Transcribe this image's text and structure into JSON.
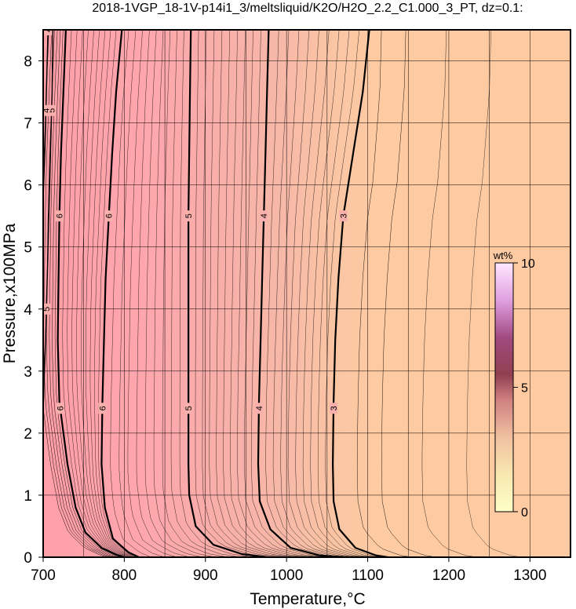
{
  "chart_data": {
    "type": "contour",
    "title": "2018-1VGP_18-1V-p14i1_3/meltsliquid/K2O/H2O_2.2_C1.000_3_PT, dz=0.1:",
    "xlabel": "Temperature,°C",
    "ylabel": "Pressure,x100MPa",
    "xlim": [
      700,
      1350
    ],
    "ylim": [
      0,
      8.5
    ],
    "xticks": [
      "700",
      "800",
      "900",
      "1000",
      "1100",
      "1200",
      "1300"
    ],
    "yticks": [
      "0",
      "1",
      "2",
      "3",
      "4",
      "5",
      "6",
      "7",
      "8"
    ],
    "grid": true,
    "colorbar": {
      "label": "wt%",
      "min": 0,
      "max": 10,
      "ticks": [
        "0",
        "5",
        "10"
      ],
      "colors": [
        "#ffffc8",
        "#ffd0a0",
        "#f0a0a0",
        "#c06070",
        "#a05090",
        "#ffe8ff"
      ]
    },
    "colors": {
      "low_region": "#fcc8a0",
      "mid_region": "#f5a8a8",
      "high_region": "#ffa8b0"
    },
    "contour_lines": [
      {
        "level": 6,
        "labels": [
          "6",
          "6"
        ],
        "points": [
          [
            797,
            8.5
          ],
          [
            790,
            7.5
          ],
          [
            785,
            6.5
          ],
          [
            781,
            5.5
          ],
          [
            777,
            4.5
          ],
          [
            775,
            3.5
          ],
          [
            773,
            2.5
          ],
          [
            772,
            1.5
          ],
          [
            776,
            0.8
          ],
          [
            786,
            0.3
          ],
          [
            805,
            0.08
          ],
          [
            818,
            0.0
          ]
        ]
      },
      {
        "level": 6,
        "labels": [
          "6",
          "6"
        ],
        "points": [
          [
            728,
            8.5
          ],
          [
            725,
            7.5
          ],
          [
            722,
            6.5
          ],
          [
            720,
            5.5
          ],
          [
            719,
            4.5
          ],
          [
            718,
            3.5
          ],
          [
            720,
            2.5
          ],
          [
            730,
            1.5
          ],
          [
            740,
            0.8
          ],
          [
            752,
            0.4
          ],
          [
            772,
            0.15
          ],
          [
            790,
            0.04
          ],
          [
            800,
            0.0
          ]
        ]
      },
      {
        "level": 5,
        "labels": [
          "5",
          "5"
        ],
        "points": [
          [
            882,
            8.5
          ],
          [
            881,
            7.5
          ],
          [
            880,
            6.5
          ],
          [
            879,
            5.5
          ],
          [
            879,
            4.5
          ],
          [
            879,
            3.5
          ],
          [
            879,
            2.5
          ],
          [
            879,
            1.5
          ],
          [
            880,
            1.0
          ],
          [
            888,
            0.5
          ],
          [
            910,
            0.2
          ],
          [
            945,
            0.05
          ],
          [
            975,
            0.0
          ]
        ]
      },
      {
        "level": 4,
        "labels": [
          "4",
          "4"
        ],
        "points": [
          [
            978,
            8.5
          ],
          [
            976,
            7.5
          ],
          [
            974,
            6.5
          ],
          [
            972,
            5.5
          ],
          [
            970,
            4.5
          ],
          [
            968,
            3.5
          ],
          [
            966,
            2.5
          ],
          [
            965,
            1.5
          ],
          [
            967,
            0.9
          ],
          [
            980,
            0.45
          ],
          [
            1005,
            0.15
          ],
          [
            1040,
            0.03
          ],
          [
            1070,
            0.0
          ]
        ]
      },
      {
        "level": 3,
        "labels": [
          "3",
          "3"
        ],
        "points": [
          [
            1102,
            8.5
          ],
          [
            1094,
            7.5
          ],
          [
            1082,
            6.5
          ],
          [
            1070,
            5.5
          ],
          [
            1064,
            4.5
          ],
          [
            1060,
            3.5
          ],
          [
            1058,
            2.5
          ],
          [
            1057,
            1.5
          ],
          [
            1058,
            0.9
          ],
          [
            1065,
            0.45
          ],
          [
            1085,
            0.15
          ],
          [
            1110,
            0.03
          ],
          [
            1125,
            0.0
          ]
        ]
      },
      {
        "level": 5,
        "labels": [
          "5",
          "5"
        ],
        "points": [
          [
            712,
            8.5
          ],
          [
            711,
            7.5
          ],
          [
            709,
            6.5
          ],
          [
            707,
            5.5
          ],
          [
            705,
            4.5
          ],
          [
            703,
            3.5
          ],
          [
            701,
            2.8
          ],
          [
            700,
            2.3
          ]
        ]
      },
      {
        "level": 4,
        "labels": [
          "4",
          "4"
        ],
        "points": [
          [
            706,
            8.5
          ],
          [
            704,
            7.5
          ],
          [
            702,
            6.5
          ],
          [
            700,
            5.8
          ]
        ]
      }
    ]
  }
}
